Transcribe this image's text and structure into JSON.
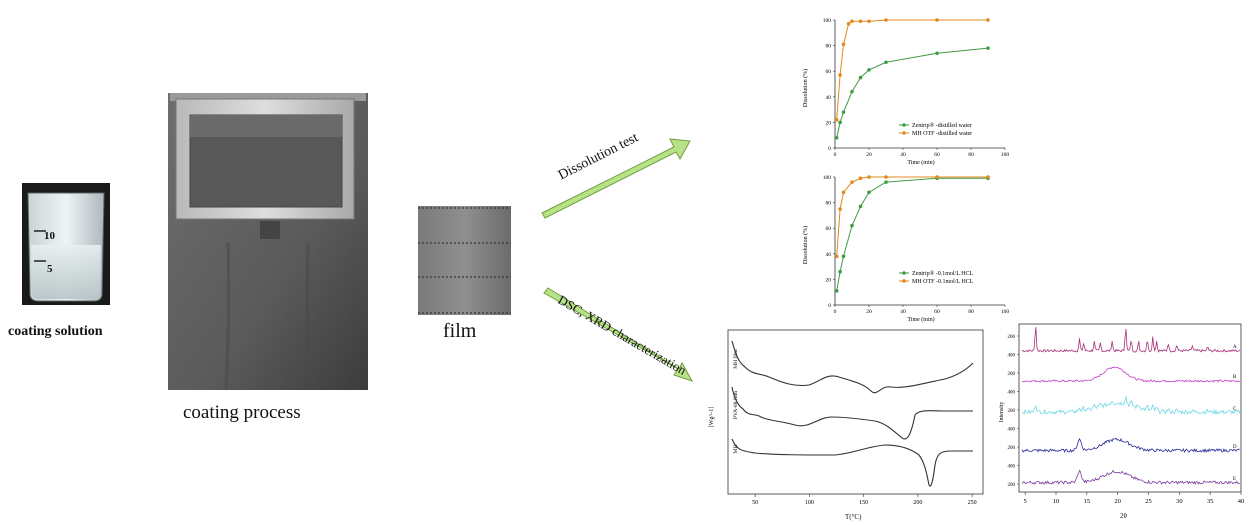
{
  "labels": {
    "coating_solution": "coating solution",
    "coating_process": "coating process",
    "film": "film",
    "dissolution_test": "Dissolution test",
    "dsc_xrd": "DSC, XRD characterization"
  },
  "beaker": {
    "mark_10": "10",
    "mark_5": "5"
  },
  "colors": {
    "green": "#3f9b45",
    "orange": "#e08a1c",
    "arrow": "#b8e28a",
    "dsc": "#333333"
  },
  "chart_water": {
    "ylabel": "Dissolution (%)",
    "xlabel": "Time (min)",
    "xlim": [
      0,
      100
    ],
    "ylim": [
      0,
      100
    ],
    "xticks": [
      "0",
      "20",
      "40",
      "60",
      "80",
      "100"
    ],
    "yticks": [
      "0",
      "20",
      "40",
      "60",
      "80",
      "100"
    ],
    "series": [
      {
        "name": "Zentrip® -distilled water",
        "color": "#3f9b45",
        "x": [
          1,
          3,
          5,
          10,
          15,
          20,
          30,
          60,
          90
        ],
        "y": [
          8,
          20,
          28,
          44,
          55,
          61,
          67,
          74,
          78
        ]
      },
      {
        "name": "MH OTF -distilled water",
        "color": "#e08a1c",
        "x": [
          1,
          3,
          5,
          8,
          10,
          15,
          20,
          30,
          60,
          90
        ],
        "y": [
          22,
          57,
          81,
          97,
          99,
          99,
          99,
          100,
          100,
          100
        ]
      }
    ]
  },
  "chart_hcl": {
    "ylabel": "Dissolution (%)",
    "xlabel": "Time (min)",
    "xlim": [
      0,
      100
    ],
    "ylim": [
      0,
      100
    ],
    "xticks": [
      "0",
      "20",
      "40",
      "60",
      "80",
      "100"
    ],
    "yticks": [
      "0",
      "20",
      "40",
      "60",
      "80",
      "100"
    ],
    "series": [
      {
        "name": "Zentrip® -0.1mol/L HCL",
        "color": "#3f9b45",
        "x": [
          1,
          3,
          5,
          10,
          15,
          20,
          30,
          60,
          90
        ],
        "y": [
          11,
          26,
          38,
          62,
          77,
          88,
          96,
          99,
          99
        ]
      },
      {
        "name": "MH OTF -0.1mol/L HCL",
        "color": "#e08a1c",
        "x": [
          1,
          3,
          5,
          10,
          15,
          20,
          30,
          60,
          90
        ],
        "y": [
          38,
          75,
          88,
          96,
          99,
          100,
          100,
          100,
          100
        ]
      }
    ]
  },
  "dsc": {
    "ylabel": "[Wg^-1]",
    "xlabel": "T(°C)",
    "xticks": [
      "50",
      "100",
      "150",
      "200",
      "250"
    ],
    "curve_labels": [
      "MH film",
      "PVA-88 film",
      "MH"
    ]
  },
  "xrd": {
    "ylabel": "Intensity",
    "xlabel": "2θ",
    "xticks": [
      "5",
      "10",
      "15",
      "20",
      "25",
      "30",
      "35",
      "40"
    ],
    "yticks": [
      "200",
      "400",
      "200",
      "400",
      "200",
      "400",
      "200",
      "400",
      "200"
    ],
    "series_letters": [
      "A",
      "B",
      "C",
      "D",
      "E"
    ],
    "series_colors": [
      "#a8307a",
      "#c43fd0",
      "#6fd8e6",
      "#2a2a9a",
      "#7a3f9a"
    ]
  }
}
